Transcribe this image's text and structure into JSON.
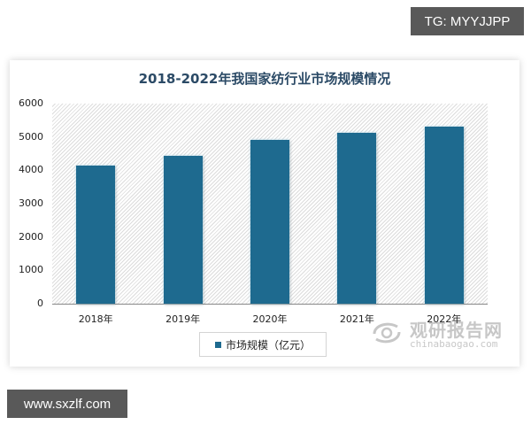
{
  "overlays": {
    "top_right_tag": "TG: MYYJJPP",
    "bottom_left_tag": "www.sxzlf.com"
  },
  "watermark": {
    "cn": "观研报告网",
    "en": "chinabaogao.com"
  },
  "colors": {
    "bar": "#1e6a8f",
    "title": "#2b4a66",
    "tag_bg": "#595959"
  },
  "chart_data": {
    "type": "bar",
    "title": "2018-2022年我国家纺行业市场规模情况",
    "xlabel": "",
    "ylabel": "",
    "categories": [
      "2018年",
      "2019年",
      "2020年",
      "2021年",
      "2022年"
    ],
    "series": [
      {
        "name": "市场规模（亿元）",
        "values": [
          4140,
          4430,
          4910,
          5120,
          5300
        ]
      }
    ],
    "yticks": [
      "0",
      "1000",
      "2000",
      "3000",
      "4000",
      "5000",
      "6000"
    ],
    "ylim": [
      0,
      6000
    ],
    "grid": false,
    "legend_position": "bottom"
  }
}
